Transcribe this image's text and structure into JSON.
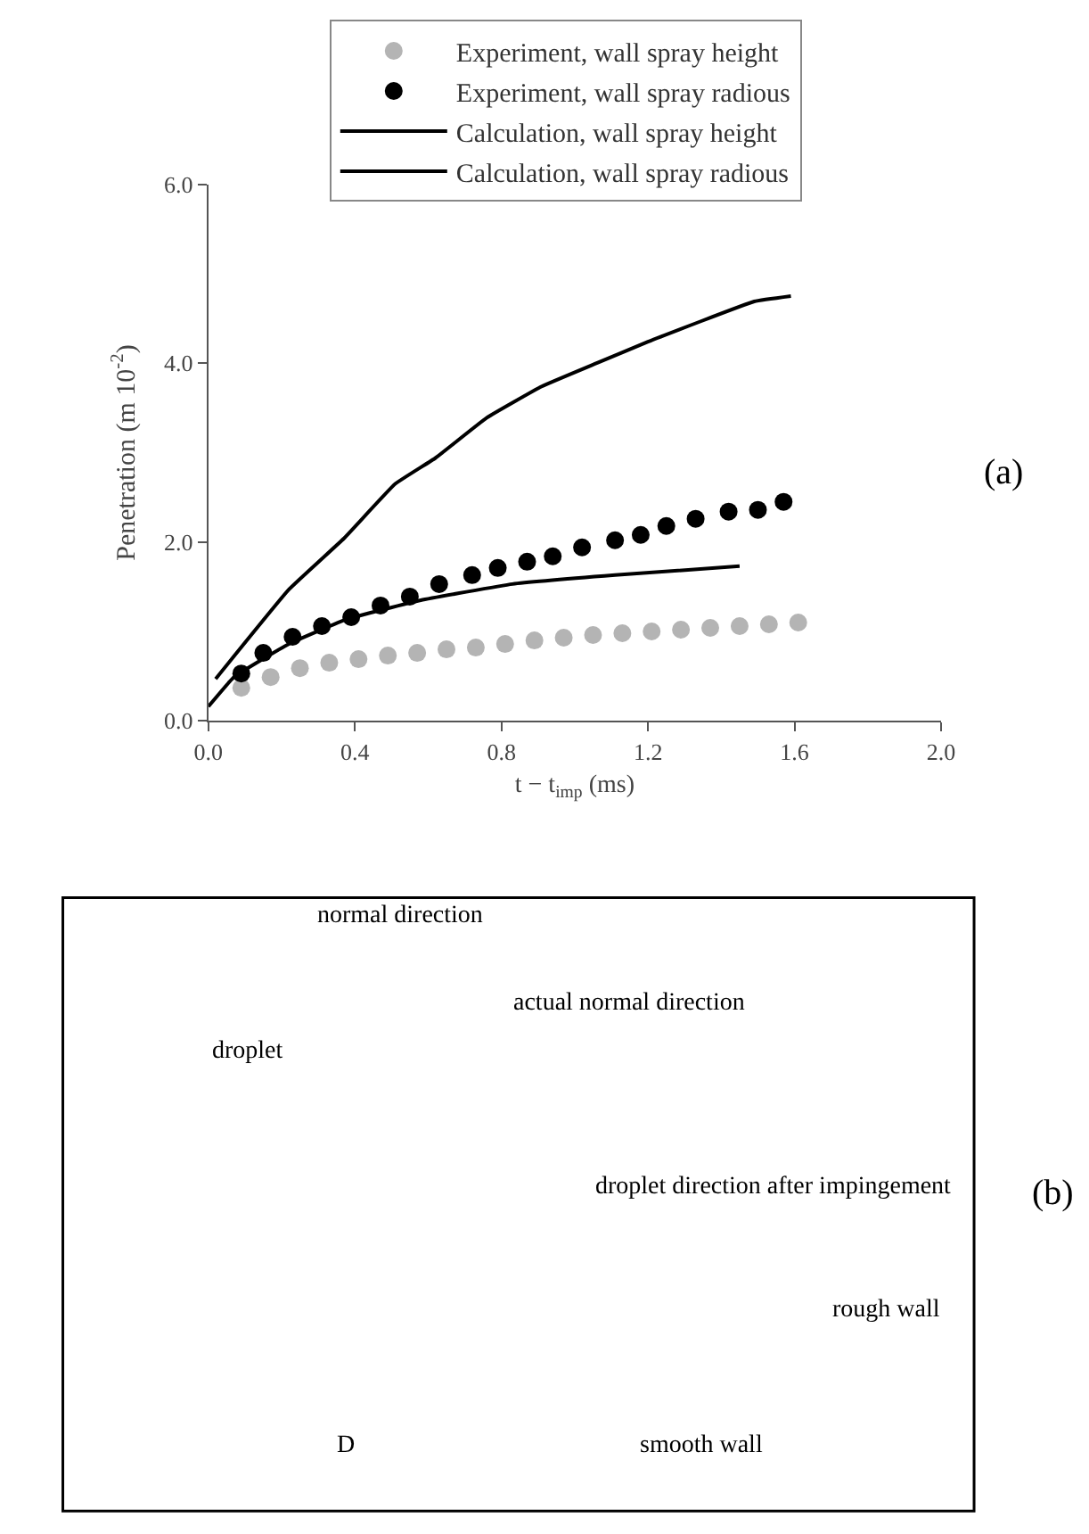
{
  "chart_data": [
    {
      "type": "scatter",
      "xlabel": "t − t$_{imp}$ (ms)",
      "ylabel": "Penetration (m 10$^{-2}$)",
      "xlim": [
        0,
        2.0
      ],
      "ylim": [
        0,
        6.0
      ],
      "xticks": [
        {
          "value": 0,
          "label": "0.0"
        },
        {
          "value": 0.4,
          "label": "0.4"
        },
        {
          "value": 0.8,
          "label": "0.8"
        },
        {
          "value": 1.2,
          "label": "1.2"
        },
        {
          "value": 1.6,
          "label": "1.6"
        },
        {
          "value": 2.0,
          "label": "2.0"
        }
      ],
      "yticks": [
        {
          "value": 0,
          "label": "0.0"
        },
        {
          "value": 2,
          "label": "2.0"
        },
        {
          "value": 4,
          "label": "4.0"
        },
        {
          "value": 6,
          "label": "6.0"
        }
      ],
      "legend": "top",
      "series": [
        {
          "name": "Experiment, wall spray height",
          "type": "scatter",
          "marker": "circle",
          "color": "#b4b4b4",
          "x": [
            0.09,
            0.17,
            0.25,
            0.33,
            0.41,
            0.49,
            0.57,
            0.65,
            0.73,
            0.81,
            0.89,
            0.97,
            1.05,
            1.13,
            1.21,
            1.29,
            1.37,
            1.45,
            1.53,
            1.61
          ],
          "values": [
            0.37,
            0.49,
            0.59,
            0.65,
            0.69,
            0.73,
            0.76,
            0.8,
            0.82,
            0.86,
            0.9,
            0.93,
            0.96,
            0.98,
            1.0,
            1.02,
            1.04,
            1.06,
            1.08,
            1.1
          ]
        },
        {
          "name": "Experiment, wall spray radious",
          "type": "scatter",
          "marker": "circle",
          "color": "#000000",
          "x": [
            0.09,
            0.15,
            0.23,
            0.31,
            0.39,
            0.47,
            0.55,
            0.63,
            0.72,
            0.79,
            0.87,
            0.94,
            1.02,
            1.11,
            1.18,
            1.25,
            1.33,
            1.42,
            1.5,
            1.57
          ],
          "values": [
            0.53,
            0.76,
            0.94,
            1.06,
            1.16,
            1.29,
            1.39,
            1.53,
            1.63,
            1.71,
            1.78,
            1.84,
            1.94,
            2.02,
            2.08,
            2.18,
            2.26,
            2.34,
            2.36,
            2.45
          ]
        },
        {
          "name": "Calculation, wall spray height",
          "type": "line",
          "marker": "none",
          "color": "#000000",
          "x": [
            0.02,
            0.22,
            0.37,
            0.51,
            0.62,
            0.76,
            0.91,
            1.06,
            1.2,
            1.49,
            1.59
          ],
          "values": [
            0.47,
            1.47,
            2.04,
            2.65,
            2.94,
            3.39,
            3.74,
            4.0,
            4.24,
            4.69,
            4.75
          ]
        },
        {
          "name": "Calculation, wall spray radious",
          "type": "line",
          "marker": "none",
          "color": "#000000",
          "x": [
            0.0,
            0.07,
            0.22,
            0.38,
            0.58,
            0.83,
            1.11,
            1.45
          ],
          "values": [
            0.16,
            0.49,
            0.86,
            1.14,
            1.35,
            1.53,
            1.63,
            1.73
          ]
        }
      ],
      "annotations": [
        "(a)"
      ]
    },
    {
      "type": "other",
      "annotations": [
        "normal direction",
        "actual normal direction",
        "droplet",
        "droplet direction after impingement",
        "rough wall",
        "smooth wall",
        "D",
        "(b)"
      ]
    }
  ]
}
